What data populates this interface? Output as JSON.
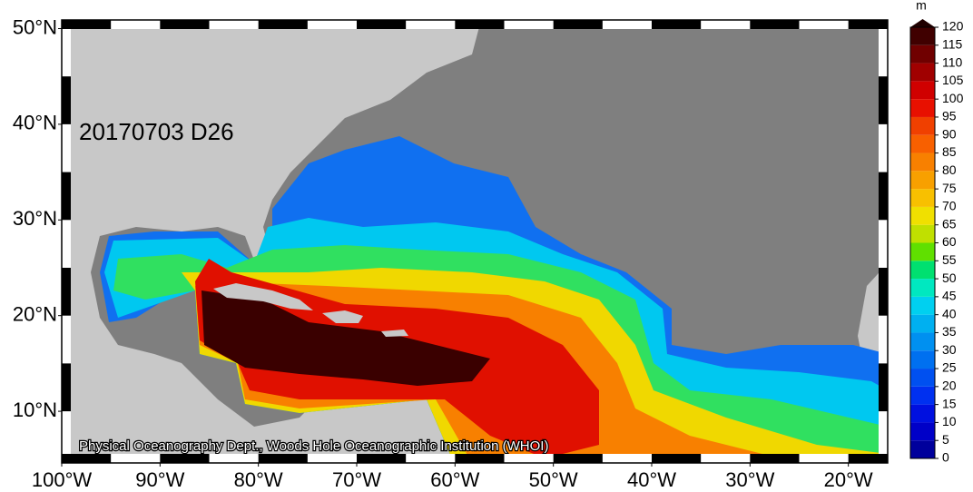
{
  "map": {
    "title": "20170703 D26",
    "credit": "Physical Oceanography Dept., Woods Hole Oceanographic Institution (WHOI)",
    "xlim": [
      -100,
      -16
    ],
    "ylim": [
      4.6,
      50.9
    ],
    "xticks": [
      {
        "value": -100,
        "label": "100°W"
      },
      {
        "value": -90,
        "label": "90°W"
      },
      {
        "value": -80,
        "label": "80°W"
      },
      {
        "value": -70,
        "label": "70°W"
      },
      {
        "value": -60,
        "label": "60°W"
      },
      {
        "value": -50,
        "label": "50°W"
      },
      {
        "value": -40,
        "label": "40°W"
      },
      {
        "value": -30,
        "label": "30°W"
      },
      {
        "value": -20,
        "label": "20°W"
      }
    ],
    "yticks": [
      {
        "value": 10,
        "label": "10°N"
      },
      {
        "value": 20,
        "label": "20°N"
      },
      {
        "value": 30,
        "label": "30°N"
      },
      {
        "value": 40,
        "label": "40°N"
      },
      {
        "value": 50,
        "label": "50°N"
      }
    ],
    "colorbar": {
      "unit": "m",
      "ticks": [
        0,
        5,
        10,
        15,
        20,
        25,
        30,
        35,
        40,
        45,
        50,
        55,
        60,
        65,
        70,
        75,
        80,
        85,
        90,
        95,
        100,
        105,
        110,
        115,
        120
      ],
      "colors": [
        "#00009c",
        "#0000c8",
        "#0010e0",
        "#0030f0",
        "#0050f0",
        "#0070f0",
        "#0090f0",
        "#00b0f0",
        "#00d0f0",
        "#00e8c0",
        "#00e070",
        "#60e000",
        "#c0e000",
        "#f0e000",
        "#f8c000",
        "#f8a000",
        "#f88000",
        "#f86000",
        "#f04000",
        "#e81000",
        "#d00000",
        "#a00000",
        "#700000",
        "#400000"
      ],
      "over_color": "#200000"
    }
  }
}
